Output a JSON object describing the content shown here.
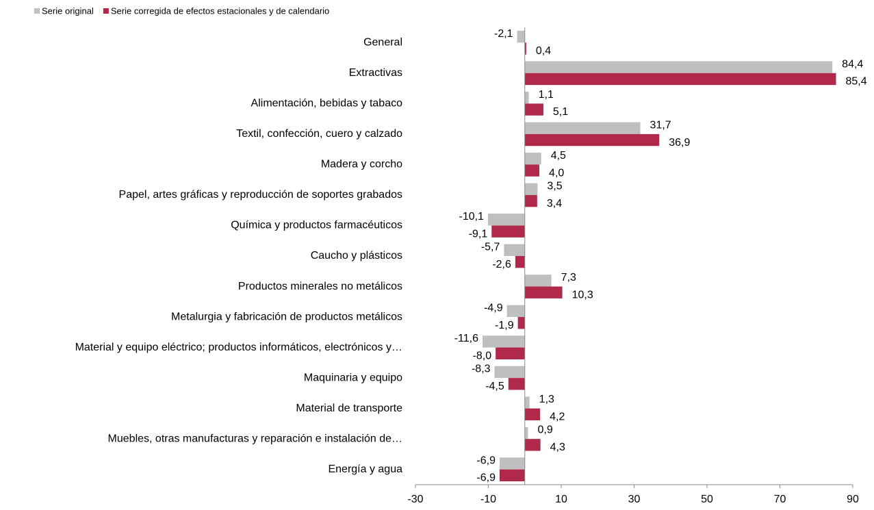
{
  "chart_data": {
    "type": "hbar",
    "categories": [
      "General",
      "Extractivas",
      "Alimentación, bebidas y tabaco",
      "Textil, confección, cuero y calzado",
      "Madera y corcho",
      "Papel, artes gráficas y reproducción de soportes grabados",
      "Química y productos farmacéuticos",
      "Caucho y plásticos",
      "Productos minerales no metálicos",
      "Metalurgia y fabricación de productos metálicos",
      "Material y equipo eléctrico; productos informáticos, electrónicos y…",
      "Maquinaria y equipo",
      "Material de transporte",
      "Muebles, otras manufacturas y reparación e instalación de…",
      "Energía y agua"
    ],
    "series": [
      {
        "name": "Serie original",
        "color": "#bfbfbf",
        "values": [
          -2.1,
          84.4,
          1.1,
          31.7,
          4.5,
          3.5,
          -10.1,
          -5.7,
          7.3,
          -4.9,
          -11.6,
          -8.3,
          1.3,
          0.9,
          -6.9
        ],
        "value_labels": [
          "-2,1",
          "84,4",
          "1,1",
          "31,7",
          "4,5",
          "3,5",
          "-10,1",
          "-5,7",
          "7,3",
          "-4,9",
          "-11,6",
          "-8,3",
          "1,3",
          "0,9",
          "-6,9"
        ]
      },
      {
        "name": "Serie corregida de efectos estacionales y de calendario",
        "color": "#b0294b",
        "values": [
          0.4,
          85.4,
          5.1,
          36.9,
          4.0,
          3.4,
          -9.1,
          -2.6,
          10.3,
          -1.9,
          -8.0,
          -4.5,
          4.2,
          4.3,
          -6.9
        ],
        "value_labels": [
          "0,4",
          "85,4",
          "5,1",
          "36,9",
          "4,0",
          "3,4",
          "-9,1",
          "-2,6",
          "10,3",
          "-1,9",
          "-8,0",
          "-4,5",
          "4,2",
          "4,3",
          "-6,9"
        ]
      }
    ],
    "xlim": [
      -30,
      90
    ],
    "xticks": [
      -30,
      -10,
      10,
      30,
      50,
      70,
      90
    ],
    "legend": "top-left"
  }
}
